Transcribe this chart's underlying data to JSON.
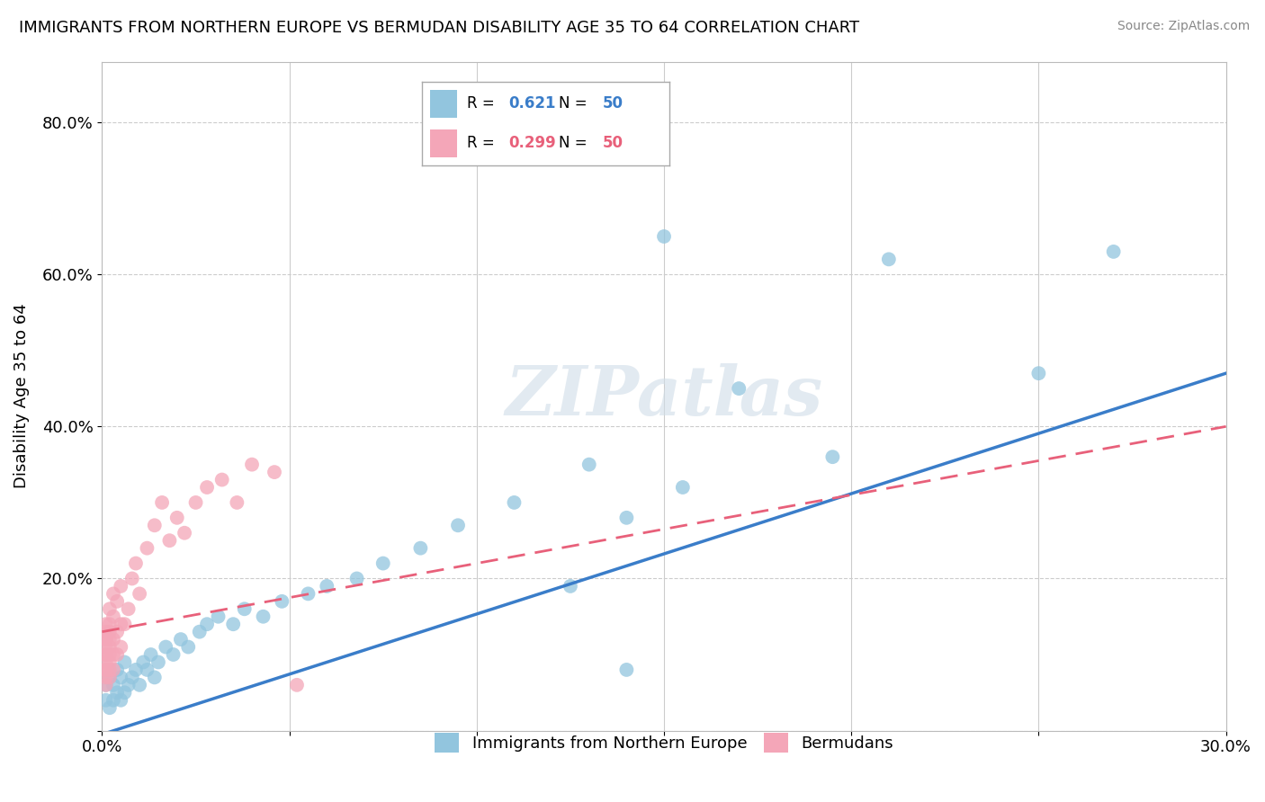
{
  "title": "IMMIGRANTS FROM NORTHERN EUROPE VS BERMUDAN DISABILITY AGE 35 TO 64 CORRELATION CHART",
  "source": "Source: ZipAtlas.com",
  "ylabel": "Disability Age 35 to 64",
  "xlim": [
    0.0,
    0.3
  ],
  "ylim": [
    0.0,
    0.88
  ],
  "xticks": [
    0.0,
    0.05,
    0.1,
    0.15,
    0.2,
    0.25,
    0.3
  ],
  "xticklabels": [
    "0.0%",
    "",
    "",
    "",
    "",
    "",
    "30.0%"
  ],
  "yticks": [
    0.0,
    0.2,
    0.4,
    0.6,
    0.8
  ],
  "yticklabels": [
    "",
    "20.0%",
    "40.0%",
    "60.0%",
    "80.0%"
  ],
  "r_blue": 0.621,
  "n_blue": 50,
  "r_pink": 0.299,
  "n_pink": 50,
  "blue_color": "#92c5de",
  "pink_color": "#f4a6b8",
  "blue_line_color": "#3a7dc9",
  "pink_line_color": "#e8607a",
  "watermark": "ZIPatlas",
  "blue_scatter_x": [
    0.001,
    0.001,
    0.002,
    0.002,
    0.003,
    0.003,
    0.004,
    0.004,
    0.005,
    0.005,
    0.006,
    0.006,
    0.007,
    0.008,
    0.009,
    0.01,
    0.011,
    0.012,
    0.013,
    0.014,
    0.015,
    0.017,
    0.019,
    0.021,
    0.023,
    0.026,
    0.028,
    0.031,
    0.035,
    0.038,
    0.043,
    0.048,
    0.055,
    0.06,
    0.068,
    0.075,
    0.085,
    0.095,
    0.11,
    0.125,
    0.14,
    0.155,
    0.17,
    0.15,
    0.195,
    0.21,
    0.14,
    0.25,
    0.27,
    0.13
  ],
  "blue_scatter_y": [
    0.04,
    0.06,
    0.03,
    0.07,
    0.04,
    0.06,
    0.05,
    0.08,
    0.04,
    0.07,
    0.05,
    0.09,
    0.06,
    0.07,
    0.08,
    0.06,
    0.09,
    0.08,
    0.1,
    0.07,
    0.09,
    0.11,
    0.1,
    0.12,
    0.11,
    0.13,
    0.14,
    0.15,
    0.14,
    0.16,
    0.15,
    0.17,
    0.18,
    0.19,
    0.2,
    0.22,
    0.24,
    0.27,
    0.3,
    0.19,
    0.28,
    0.32,
    0.45,
    0.65,
    0.36,
    0.62,
    0.08,
    0.47,
    0.63,
    0.35
  ],
  "pink_scatter_x": [
    0.001,
    0.001,
    0.001,
    0.001,
    0.001,
    0.001,
    0.001,
    0.001,
    0.001,
    0.001,
    0.001,
    0.001,
    0.002,
    0.002,
    0.002,
    0.002,
    0.002,
    0.002,
    0.002,
    0.002,
    0.002,
    0.003,
    0.003,
    0.003,
    0.003,
    0.003,
    0.004,
    0.004,
    0.004,
    0.005,
    0.005,
    0.005,
    0.006,
    0.007,
    0.008,
    0.009,
    0.01,
    0.012,
    0.014,
    0.016,
    0.018,
    0.02,
    0.022,
    0.025,
    0.028,
    0.032,
    0.036,
    0.04,
    0.046,
    0.052
  ],
  "pink_scatter_y": [
    0.07,
    0.08,
    0.09,
    0.1,
    0.11,
    0.12,
    0.13,
    0.14,
    0.06,
    0.08,
    0.1,
    0.12,
    0.07,
    0.09,
    0.11,
    0.13,
    0.08,
    0.1,
    0.12,
    0.14,
    0.16,
    0.08,
    0.1,
    0.12,
    0.15,
    0.18,
    0.1,
    0.13,
    0.17,
    0.11,
    0.14,
    0.19,
    0.14,
    0.16,
    0.2,
    0.22,
    0.18,
    0.24,
    0.27,
    0.3,
    0.25,
    0.28,
    0.26,
    0.3,
    0.32,
    0.33,
    0.3,
    0.35,
    0.34,
    0.06
  ],
  "blue_line_x0": 0.0,
  "blue_line_y0": -0.005,
  "blue_line_x1": 0.3,
  "blue_line_y1": 0.47,
  "pink_line_x0": 0.0,
  "pink_line_y0": 0.13,
  "pink_line_x1": 0.3,
  "pink_line_y1": 0.4
}
